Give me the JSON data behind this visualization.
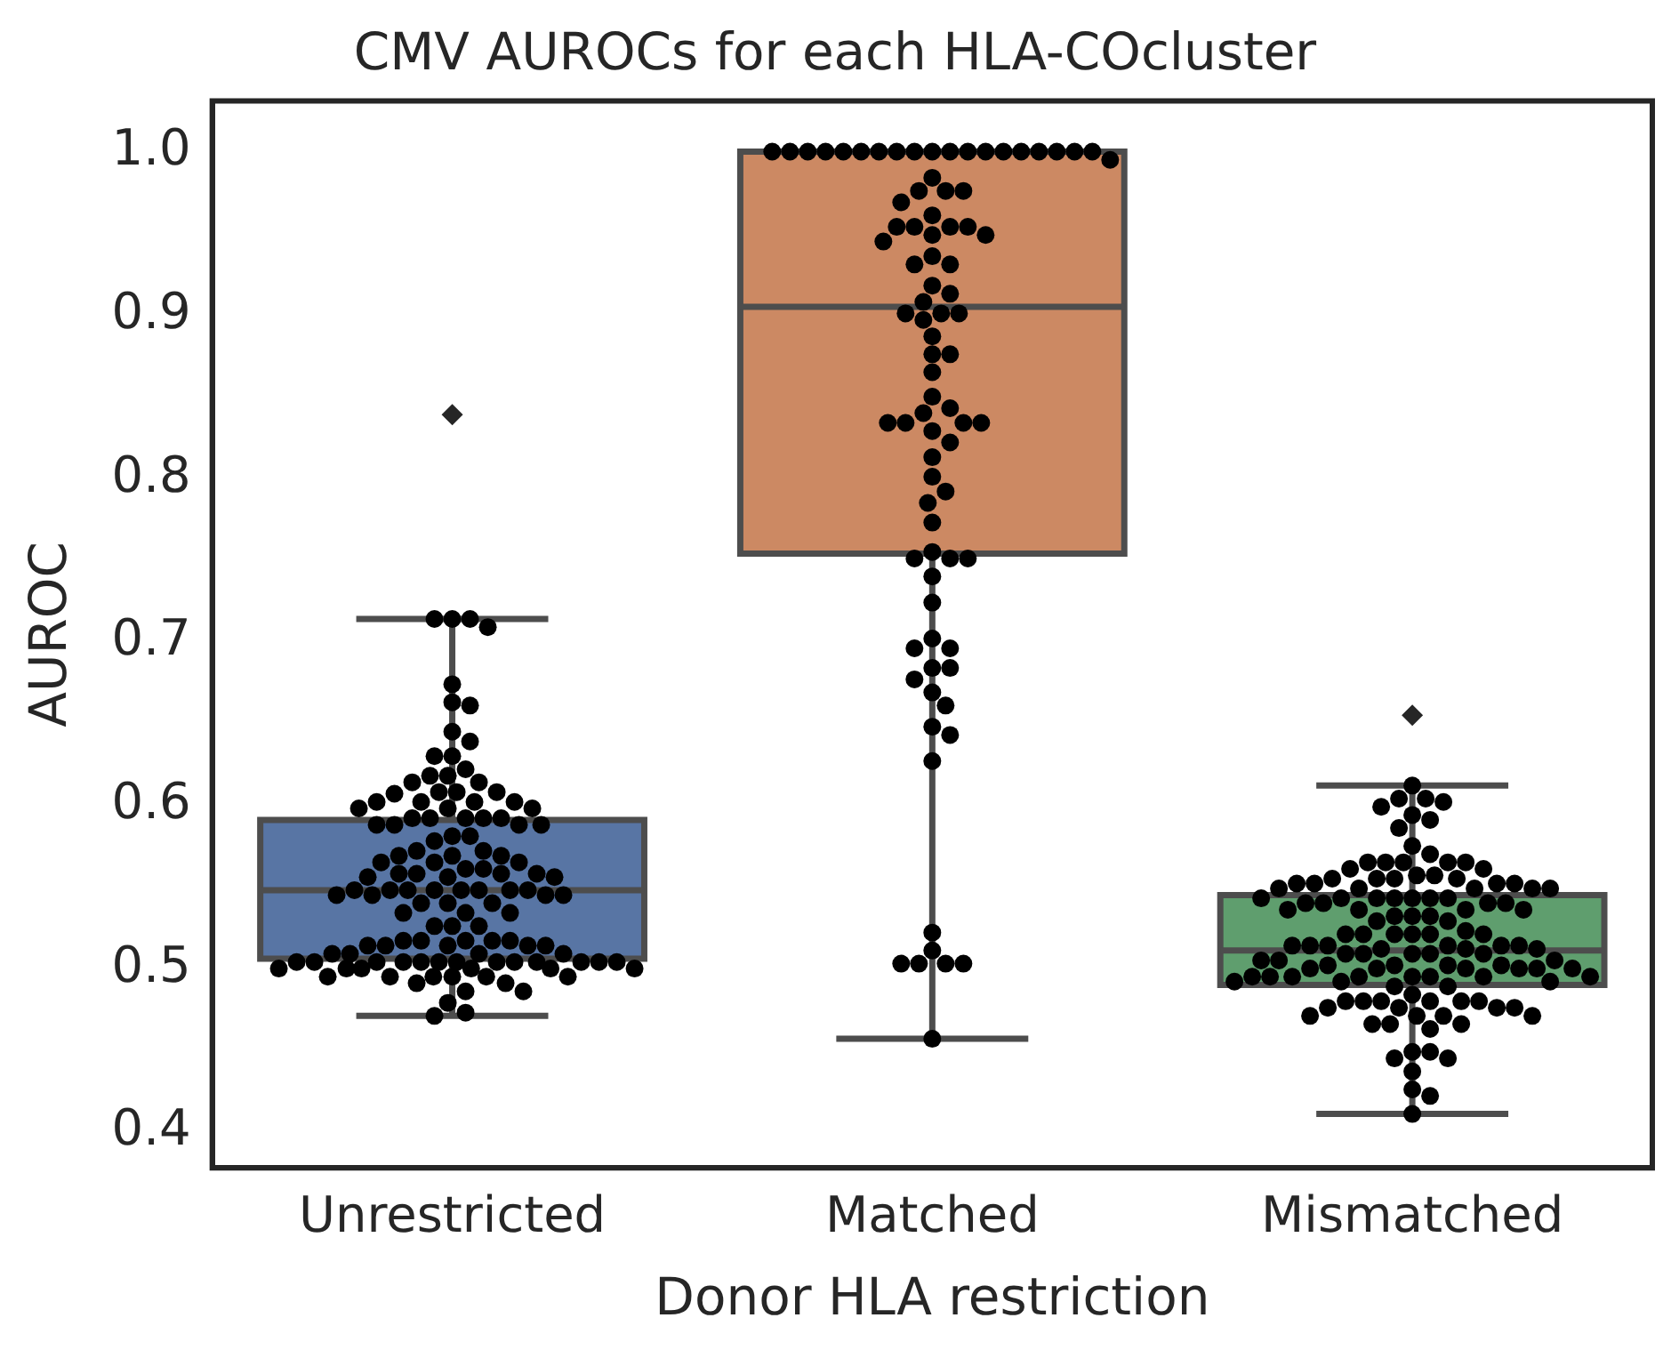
{
  "chart_data": {
    "type": "box",
    "title": "CMV AUROCs for each HLA-COcluster",
    "xlabel": "Donor HLA restriction",
    "ylabel": "AUROC",
    "categories": [
      "Unrestricted",
      "Matched",
      "Mismatched"
    ],
    "colors": [
      "#5875a4",
      "#cc8963",
      "#5f9e6e"
    ],
    "boxes": [
      {
        "low": 0.471,
        "q1": 0.506,
        "median": 0.548,
        "q3": 0.591,
        "high": 0.714,
        "outliers": [
          0.839
        ]
      },
      {
        "low": 0.457,
        "q1": 0.754,
        "median": 0.905,
        "q3": 1.0,
        "high": 1.0
      },
      {
        "low": 0.411,
        "q1": 0.49,
        "median": 0.511,
        "q3": 0.545,
        "high": 0.612,
        "outliers": [
          0.655
        ]
      }
    ],
    "ylim": [
      0.378,
      1.031
    ],
    "yticks": [
      0.4,
      0.5,
      0.6,
      0.7,
      0.8,
      0.9,
      {
        "value": 1,
        "label": "1.0"
      }
    ],
    "grid": false,
    "legend": false,
    "series": [
      {
        "type": "scatter",
        "color": "#000000",
        "marker": "circle",
        "x": [
          "Unrestricted",
          "Unrestricted",
          "Unrestricted",
          "Unrestricted",
          "Unrestricted",
          "Unrestricted",
          "Unrestricted",
          "Unrestricted",
          "Unrestricted",
          "Unrestricted",
          "Unrestricted",
          "Unrestricted",
          "Unrestricted",
          "Unrestricted",
          "Unrestricted",
          "Unrestricted",
          "Unrestricted",
          "Unrestricted",
          "Unrestricted",
          "Unrestricted",
          "Unrestricted",
          "Unrestricted",
          "Unrestricted",
          "Unrestricted",
          "Unrestricted",
          "Unrestricted",
          "Unrestricted",
          "Unrestricted",
          "Unrestricted",
          "Unrestricted",
          "Unrestricted",
          "Unrestricted",
          "Unrestricted",
          "Unrestricted",
          "Unrestricted",
          "Unrestricted",
          "Unrestricted",
          "Unrestricted",
          "Unrestricted",
          "Unrestricted",
          "Unrestricted",
          "Unrestricted",
          "Unrestricted",
          "Unrestricted",
          "Unrestricted",
          "Unrestricted",
          "Unrestricted",
          "Unrestricted",
          "Unrestricted",
          "Unrestricted",
          "Unrestricted",
          "Unrestricted",
          "Unrestricted",
          "Unrestricted",
          "Unrestricted",
          "Unrestricted",
          "Unrestricted",
          "Unrestricted",
          "Unrestricted",
          "Unrestricted",
          "Unrestricted",
          "Unrestricted",
          "Unrestricted",
          "Unrestricted",
          "Unrestricted",
          "Unrestricted",
          "Unrestricted",
          "Unrestricted",
          "Unrestricted",
          "Unrestricted",
          "Unrestricted",
          "Unrestricted",
          "Unrestricted",
          "Unrestricted",
          "Unrestricted",
          "Unrestricted",
          "Unrestricted",
          "Unrestricted",
          "Unrestricted",
          "Unrestricted",
          "Unrestricted",
          "Unrestricted",
          "Unrestricted",
          "Unrestricted",
          "Unrestricted",
          "Unrestricted",
          "Unrestricted",
          "Unrestricted",
          "Unrestricted",
          "Unrestricted",
          "Unrestricted",
          "Unrestricted",
          "Unrestricted",
          "Unrestricted",
          "Unrestricted",
          "Unrestricted",
          "Unrestricted",
          "Unrestricted",
          "Unrestricted",
          "Unrestricted",
          "Unrestricted",
          "Unrestricted",
          "Unrestricted",
          "Unrestricted",
          "Unrestricted",
          "Unrestricted",
          "Unrestricted",
          "Unrestricted",
          "Unrestricted",
          "Unrestricted",
          "Unrestricted",
          "Unrestricted",
          "Unrestricted",
          "Unrestricted",
          "Unrestricted",
          "Unrestricted",
          "Unrestricted",
          "Unrestricted",
          "Unrestricted",
          "Unrestricted",
          "Unrestricted",
          "Unrestricted",
          "Unrestricted"
        ],
        "values": [
          0.714,
          0.714,
          0.714,
          0.709,
          0.674,
          0.663,
          0.661,
          0.645,
          0.639,
          0.63,
          0.63,
          0.622,
          0.618,
          0.618,
          0.614,
          0.614,
          0.608,
          0.608,
          0.608,
          0.607,
          0.602,
          0.602,
          0.602,
          0.602,
          0.598,
          0.598,
          0.598,
          0.592,
          0.592,
          0.592,
          0.592,
          0.592,
          0.588,
          0.588,
          0.588,
          0.588,
          0.581,
          0.581,
          0.578,
          0.572,
          0.572,
          0.569,
          0.569,
          0.569,
          0.565,
          0.565,
          0.565,
          0.561,
          0.561,
          0.558,
          0.558,
          0.558,
          0.558,
          0.556,
          0.556,
          0.556,
          0.548,
          0.548,
          0.548,
          0.548,
          0.548,
          0.548,
          0.548,
          0.548,
          0.545,
          0.545,
          0.545,
          0.545,
          0.54,
          0.54,
          0.54,
          0.534,
          0.534,
          0.534,
          0.526,
          0.526,
          0.526,
          0.517,
          0.517,
          0.517,
          0.517,
          0.517,
          0.514,
          0.514,
          0.514,
          0.514,
          0.514,
          0.509,
          0.509,
          0.509,
          0.509,
          0.504,
          0.504,
          0.504,
          0.504,
          0.504,
          0.504,
          0.504,
          0.504,
          0.504,
          0.504,
          0.504,
          0.504,
          0.504,
          0.5,
          0.5,
          0.5,
          0.5,
          0.5,
          0.5,
          0.495,
          0.495,
          0.495,
          0.495,
          0.495,
          0.495,
          0.491,
          0.491,
          0.486,
          0.486,
          0.479,
          0.473,
          0.471
        ]
      },
      {
        "type": "scatter",
        "color": "#000000",
        "marker": "circle",
        "x": [
          "Matched",
          "Matched",
          "Matched",
          "Matched",
          "Matched",
          "Matched",
          "Matched",
          "Matched",
          "Matched",
          "Matched",
          "Matched",
          "Matched",
          "Matched",
          "Matched",
          "Matched",
          "Matched",
          "Matched",
          "Matched",
          "Matched",
          "Matched",
          "Matched",
          "Matched",
          "Matched",
          "Matched",
          "Matched",
          "Matched",
          "Matched",
          "Matched",
          "Matched",
          "Matched",
          "Matched",
          "Matched",
          "Matched",
          "Matched",
          "Matched",
          "Matched",
          "Matched",
          "Matched",
          "Matched",
          "Matched",
          "Matched",
          "Matched",
          "Matched",
          "Matched",
          "Matched",
          "Matched",
          "Matched",
          "Matched",
          "Matched",
          "Matched",
          "Matched",
          "Matched",
          "Matched",
          "Matched",
          "Matched",
          "Matched",
          "Matched",
          "Matched",
          "Matched",
          "Matched",
          "Matched",
          "Matched",
          "Matched",
          "Matched",
          "Matched",
          "Matched",
          "Matched",
          "Matched",
          "Matched",
          "Matched",
          "Matched",
          "Matched",
          "Matched",
          "Matched",
          "Matched",
          "Matched",
          "Matched",
          "Matched",
          "Matched",
          "Matched",
          "Matched",
          "Matched",
          "Matched",
          "Matched",
          "Matched"
        ],
        "values": [
          1.0,
          1.0,
          1.0,
          1.0,
          1.0,
          1.0,
          1.0,
          1.0,
          1.0,
          1.0,
          1.0,
          1.0,
          1.0,
          1.0,
          1.0,
          1.0,
          1.0,
          1.0,
          1.0,
          0.995,
          0.984,
          0.976,
          0.976,
          0.976,
          0.969,
          0.961,
          0.954,
          0.954,
          0.954,
          0.954,
          0.949,
          0.949,
          0.945,
          0.936,
          0.931,
          0.931,
          0.918,
          0.913,
          0.908,
          0.901,
          0.901,
          0.901,
          0.897,
          0.887,
          0.876,
          0.876,
          0.865,
          0.85,
          0.843,
          0.84,
          0.834,
          0.834,
          0.834,
          0.834,
          0.829,
          0.822,
          0.813,
          0.801,
          0.792,
          0.785,
          0.773,
          0.755,
          0.751,
          0.751,
          0.751,
          0.74,
          0.724,
          0.702,
          0.696,
          0.696,
          0.684,
          0.684,
          0.677,
          0.669,
          0.661,
          0.648,
          0.643,
          0.627,
          0.522,
          0.511,
          0.503,
          0.503,
          0.503,
          0.503,
          0.457
        ]
      },
      {
        "type": "scatter",
        "color": "#000000",
        "marker": "circle",
        "x": [
          "Mismatched",
          "Mismatched",
          "Mismatched",
          "Mismatched",
          "Mismatched",
          "Mismatched",
          "Mismatched",
          "Mismatched",
          "Mismatched",
          "Mismatched",
          "Mismatched",
          "Mismatched",
          "Mismatched",
          "Mismatched",
          "Mismatched",
          "Mismatched",
          "Mismatched",
          "Mismatched",
          "Mismatched",
          "Mismatched",
          "Mismatched",
          "Mismatched",
          "Mismatched",
          "Mismatched",
          "Mismatched",
          "Mismatched",
          "Mismatched",
          "Mismatched",
          "Mismatched",
          "Mismatched",
          "Mismatched",
          "Mismatched",
          "Mismatched",
          "Mismatched",
          "Mismatched",
          "Mismatched",
          "Mismatched",
          "Mismatched",
          "Mismatched",
          "Mismatched",
          "Mismatched",
          "Mismatched",
          "Mismatched",
          "Mismatched",
          "Mismatched",
          "Mismatched",
          "Mismatched",
          "Mismatched",
          "Mismatched",
          "Mismatched",
          "Mismatched",
          "Mismatched",
          "Mismatched",
          "Mismatched",
          "Mismatched",
          "Mismatched",
          "Mismatched",
          "Mismatched",
          "Mismatched",
          "Mismatched",
          "Mismatched",
          "Mismatched",
          "Mismatched",
          "Mismatched",
          "Mismatched",
          "Mismatched",
          "Mismatched",
          "Mismatched",
          "Mismatched",
          "Mismatched",
          "Mismatched",
          "Mismatched",
          "Mismatched",
          "Mismatched",
          "Mismatched",
          "Mismatched",
          "Mismatched",
          "Mismatched",
          "Mismatched",
          "Mismatched",
          "Mismatched",
          "Mismatched",
          "Mismatched",
          "Mismatched",
          "Mismatched",
          "Mismatched",
          "Mismatched",
          "Mismatched",
          "Mismatched",
          "Mismatched",
          "Mismatched",
          "Mismatched",
          "Mismatched",
          "Mismatched",
          "Mismatched",
          "Mismatched",
          "Mismatched",
          "Mismatched",
          "Mismatched",
          "Mismatched",
          "Mismatched",
          "Mismatched",
          "Mismatched",
          "Mismatched",
          "Mismatched",
          "Mismatched",
          "Mismatched",
          "Mismatched",
          "Mismatched",
          "Mismatched",
          "Mismatched",
          "Mismatched",
          "Mismatched",
          "Mismatched",
          "Mismatched",
          "Mismatched",
          "Mismatched",
          "Mismatched",
          "Mismatched",
          "Mismatched",
          "Mismatched",
          "Mismatched",
          "Mismatched",
          "Mismatched",
          "Mismatched",
          "Mismatched"
        ],
        "values": [
          0.612,
          0.604,
          0.604,
          0.602,
          0.599,
          0.594,
          0.591,
          0.586,
          0.575,
          0.57,
          0.565,
          0.565,
          0.565,
          0.565,
          0.565,
          0.561,
          0.561,
          0.557,
          0.557,
          0.555,
          0.555,
          0.555,
          0.555,
          0.552,
          0.552,
          0.552,
          0.552,
          0.549,
          0.549,
          0.549,
          0.549,
          0.549,
          0.543,
          0.543,
          0.543,
          0.543,
          0.543,
          0.543,
          0.543,
          0.54,
          0.54,
          0.54,
          0.54,
          0.536,
          0.536,
          0.536,
          0.536,
          0.532,
          0.532,
          0.532,
          0.529,
          0.529,
          0.523,
          0.521,
          0.521,
          0.521,
          0.521,
          0.521,
          0.521,
          0.514,
          0.514,
          0.514,
          0.514,
          0.514,
          0.514,
          0.512,
          0.512,
          0.512,
          0.509,
          0.509,
          0.509,
          0.509,
          0.509,
          0.505,
          0.505,
          0.505,
          0.502,
          0.502,
          0.502,
          0.502,
          0.5,
          0.5,
          0.5,
          0.5,
          0.5,
          0.5,
          0.495,
          0.495,
          0.495,
          0.495,
          0.495,
          0.495,
          0.495,
          0.495,
          0.492,
          0.492,
          0.492,
          0.489,
          0.489,
          0.484,
          0.48,
          0.48,
          0.48,
          0.48,
          0.48,
          0.48,
          0.476,
          0.476,
          0.476,
          0.476,
          0.471,
          0.471,
          0.471,
          0.471,
          0.466,
          0.466,
          0.466,
          0.463,
          0.449,
          0.449,
          0.445,
          0.445,
          0.437,
          0.426,
          0.422,
          0.411
        ]
      }
    ]
  }
}
